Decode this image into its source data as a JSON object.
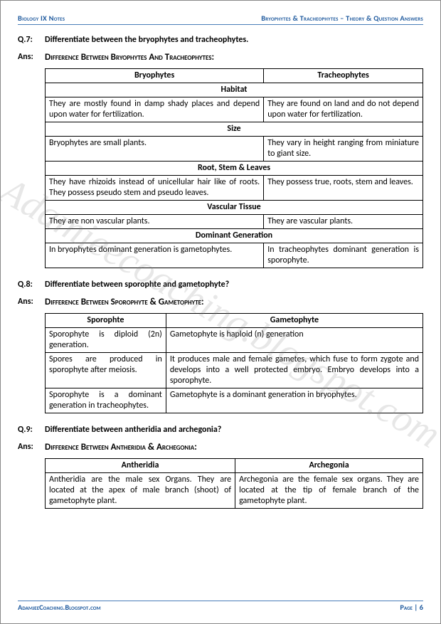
{
  "header": {
    "left": "Biology IX Notes",
    "right": "Bryophytes & Tracheophytes – Theory & Question Answers"
  },
  "watermark": "Adamjeecoaching.blogspot.com",
  "q7": {
    "num": "Q.7:",
    "text": "Differentiate between the bryophytes and tracheophytes.",
    "ansLabel": "Ans:",
    "ansHeading": "Difference Between Bryophytes And Tracheophytes:",
    "col1": "Bryophytes",
    "col2": "Tracheophytes",
    "sections": [
      {
        "head": "Habitat",
        "l": "They are mostly found in damp shady places and depend upon water for fertilization.",
        "r": "They are found on land and do not depend upon water for fertilization."
      },
      {
        "head": "Size",
        "l": "Bryophytes are small plants.",
        "r": "They vary in height ranging from miniature to giant size."
      },
      {
        "head": "Root, Stem & Leaves",
        "l": "They have rhizoids instead of unicellular hair like of roots. They possess pseudo stem and pseudo leaves.",
        "r": "They possess true, roots, stem and leaves."
      },
      {
        "head": "Vascular Tissue",
        "l": "They are non vascular plants.",
        "r": "They are vascular plants."
      },
      {
        "head": "Dominant Generation",
        "l": "In bryophytes dominant generation is gametophytes.",
        "r": "In tracheophytes dominant generation is sporophyte."
      }
    ]
  },
  "q8": {
    "num": "Q.8:",
    "text": "Differentiate between sporophte and gametophyte?",
    "ansLabel": "Ans:",
    "ansHeading": "Difference Between Sporophyte & Gametophyte:",
    "col1": "Sporophte",
    "col2": "Gametophyte",
    "rows": [
      {
        "l": "Sporophyte is diploid (2n) generation.",
        "r": "Gametophyte is haploid (n) generation"
      },
      {
        "l": "Spores are produced in sporophyte after meiosis.",
        "r": "It produces male and female gametes, which fuse to form zygote and develops into a well protected embryo. Embryo develops into a sporophyte."
      },
      {
        "l": "Sporophyte is a dominant generation in tracheophytes.",
        "r": "Gametophyte is a dominant generation in bryophytes."
      }
    ]
  },
  "q9": {
    "num": "Q.9:",
    "text": "Differentiate between antheridia and archegonia?",
    "ansLabel": "Ans:",
    "ansHeading": "Difference Between Antheridia & Archegonia:",
    "col1": "Antheridia",
    "col2": "Archegonia",
    "rows": [
      {
        "l": "Antheridia are the male sex Organs. They are located at the apex of male branch (shoot) of gametophyte plant.",
        "r": "Archegonia are the female sex organs. They are located at the tip of female branch of the gametophyte plant."
      }
    ]
  },
  "footer": {
    "left": "AdamjeeCoaching.Blogspot.com",
    "right": "Page | 6"
  }
}
